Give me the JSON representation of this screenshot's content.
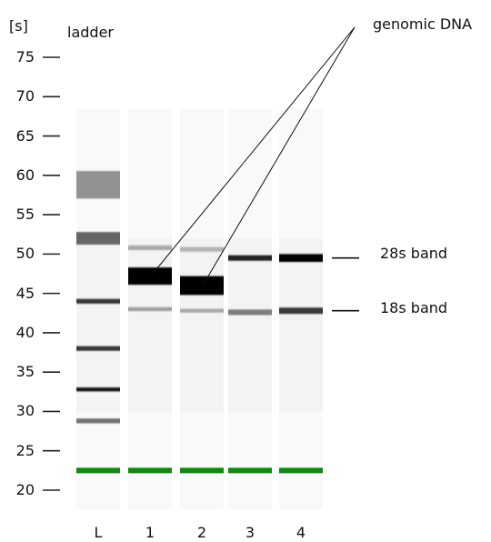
{
  "gel": {
    "unit_label": "[s]",
    "ladder_label": "ladder",
    "y_axis": {
      "min": 20,
      "max": 75,
      "ticks": [
        75,
        70,
        65,
        60,
        55,
        50,
        45,
        40,
        35,
        30,
        25,
        20
      ]
    },
    "lanes": [
      {
        "label": "L",
        "bands": [
          {
            "pos": 58.8,
            "intensity": 0.35,
            "width": 3.5
          },
          {
            "pos": 52.0,
            "intensity": 0.55,
            "width": 1.6
          },
          {
            "pos": 44.0,
            "intensity": 0.75,
            "width": 0.6
          },
          {
            "pos": 38.0,
            "intensity": 0.75,
            "width": 0.6
          },
          {
            "pos": 32.8,
            "intensity": 0.9,
            "width": 0.5
          },
          {
            "pos": 28.8,
            "intensity": 0.5,
            "width": 0.6
          }
        ]
      },
      {
        "label": "1",
        "bands": [
          {
            "pos": 47.2,
            "intensity": 1.0,
            "width": 2.2
          },
          {
            "pos": 50.8,
            "intensity": 0.25,
            "width": 0.6
          },
          {
            "pos": 43.0,
            "intensity": 0.3,
            "width": 0.5
          }
        ]
      },
      {
        "label": "2",
        "bands": [
          {
            "pos": 46.0,
            "intensity": 1.0,
            "width": 2.4
          },
          {
            "pos": 50.6,
            "intensity": 0.2,
            "width": 0.6
          },
          {
            "pos": 42.8,
            "intensity": 0.25,
            "width": 0.5
          }
        ]
      },
      {
        "label": "3",
        "bands": [
          {
            "pos": 49.5,
            "intensity": 0.85,
            "width": 0.7
          },
          {
            "pos": 42.6,
            "intensity": 0.45,
            "width": 0.7
          }
        ]
      },
      {
        "label": "4",
        "bands": [
          {
            "pos": 49.5,
            "intensity": 1.0,
            "width": 1.0
          },
          {
            "pos": 42.8,
            "intensity": 0.75,
            "width": 0.8
          }
        ]
      }
    ],
    "marker_position": 22.5,
    "marker_color": "#118811",
    "annotations": {
      "genomic_dna": "genomic DNA",
      "band_28s": "28s band",
      "band_18s": "18s band"
    }
  }
}
